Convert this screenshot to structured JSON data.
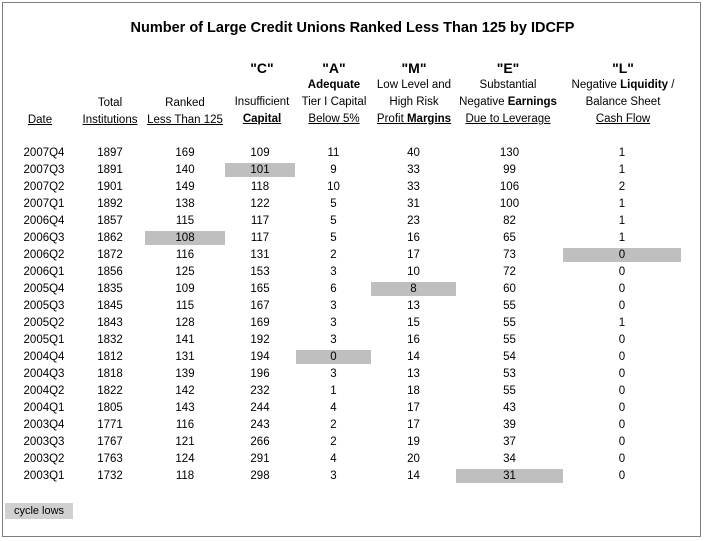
{
  "title": "Number of Large Credit Unions Ranked Less Than 125 by IDCFP",
  "headers": {
    "date": "Date",
    "total_line1": "Total",
    "total_line2": "Institutions",
    "ranked_line1": "Ranked",
    "ranked_line2": "Less Than 125",
    "c_letter": "\"C\"",
    "c_line1": "Insufficient",
    "c_line2": "Capital",
    "a_letter": "\"A\"",
    "a_line1": "Adequate",
    "a_line2": "Tier I Capital",
    "a_line3": "Below 5%",
    "m_letter": "\"M\"",
    "m_line1": "Low Level and",
    "m_line2": "High Risk",
    "m_line3a": "Profit ",
    "m_line3b": "Margins",
    "e_letter": "\"E\"",
    "e_line1": "Substantial",
    "e_line2a": "Negative ",
    "e_line2b": "Earnings",
    "e_line3": "Due to Leverage",
    "l_letter": "\"L\"",
    "l_line1a": "Negative ",
    "l_line1b": "Liquidity",
    "l_line1c": " /",
    "l_line2": "Balance Sheet",
    "l_line3": "Cash Flow"
  },
  "rows": [
    {
      "date": "2007Q4",
      "total": "1897",
      "ranked": "169",
      "c": "109",
      "a": "11",
      "m": "40",
      "e": "130",
      "l": "1"
    },
    {
      "date": "2007Q3",
      "total": "1891",
      "ranked": "140",
      "c": "101",
      "a": "9",
      "m": "33",
      "e": "99",
      "l": "1"
    },
    {
      "date": "2007Q2",
      "total": "1901",
      "ranked": "149",
      "c": "118",
      "a": "10",
      "m": "33",
      "e": "106",
      "l": "2"
    },
    {
      "date": "2007Q1",
      "total": "1892",
      "ranked": "138",
      "c": "122",
      "a": "5",
      "m": "31",
      "e": "100",
      "l": "1"
    },
    {
      "date": "2006Q4",
      "total": "1857",
      "ranked": "115",
      "c": "117",
      "a": "5",
      "m": "23",
      "e": "82",
      "l": "1"
    },
    {
      "date": "2006Q3",
      "total": "1862",
      "ranked": "108",
      "c": "117",
      "a": "5",
      "m": "16",
      "e": "65",
      "l": "1"
    },
    {
      "date": "2006Q2",
      "total": "1872",
      "ranked": "116",
      "c": "131",
      "a": "2",
      "m": "17",
      "e": "73",
      "l": "0"
    },
    {
      "date": "2006Q1",
      "total": "1856",
      "ranked": "125",
      "c": "153",
      "a": "3",
      "m": "10",
      "e": "72",
      "l": "0"
    },
    {
      "date": "2005Q4",
      "total": "1835",
      "ranked": "109",
      "c": "165",
      "a": "6",
      "m": "8",
      "e": "60",
      "l": "0"
    },
    {
      "date": "2005Q3",
      "total": "1845",
      "ranked": "115",
      "c": "167",
      "a": "3",
      "m": "13",
      "e": "55",
      "l": "0"
    },
    {
      "date": "2005Q2",
      "total": "1843",
      "ranked": "128",
      "c": "169",
      "a": "3",
      "m": "15",
      "e": "55",
      "l": "1"
    },
    {
      "date": "2005Q1",
      "total": "1832",
      "ranked": "141",
      "c": "192",
      "a": "3",
      "m": "16",
      "e": "55",
      "l": "0"
    },
    {
      "date": "2004Q4",
      "total": "1812",
      "ranked": "131",
      "c": "194",
      "a": "0",
      "m": "14",
      "e": "54",
      "l": "0"
    },
    {
      "date": "2004Q3",
      "total": "1818",
      "ranked": "139",
      "c": "196",
      "a": "3",
      "m": "13",
      "e": "53",
      "l": "0"
    },
    {
      "date": "2004Q2",
      "total": "1822",
      "ranked": "142",
      "c": "232",
      "a": "1",
      "m": "18",
      "e": "55",
      "l": "0"
    },
    {
      "date": "2004Q1",
      "total": "1805",
      "ranked": "143",
      "c": "244",
      "a": "4",
      "m": "17",
      "e": "43",
      "l": "0"
    },
    {
      "date": "2003Q4",
      "total": "1771",
      "ranked": "116",
      "c": "243",
      "a": "2",
      "m": "17",
      "e": "39",
      "l": "0"
    },
    {
      "date": "2003Q3",
      "total": "1767",
      "ranked": "121",
      "c": "266",
      "a": "2",
      "m": "19",
      "e": "37",
      "l": "0"
    },
    {
      "date": "2003Q2",
      "total": "1763",
      "ranked": "124",
      "c": "291",
      "a": "4",
      "m": "20",
      "e": "34",
      "l": "0"
    },
    {
      "date": "2003Q1",
      "total": "1732",
      "ranked": "118",
      "c": "298",
      "a": "3",
      "m": "14",
      "e": "31",
      "l": "0"
    }
  ],
  "cycle_lows": {
    "ranked": "2006Q3",
    "c": "2007Q3",
    "a": "2004Q4",
    "m": "2005Q4",
    "e": "2003Q1",
    "l": "2006Q2"
  },
  "highlight_color": "#bfbfbf",
  "legend": "cycle lows"
}
